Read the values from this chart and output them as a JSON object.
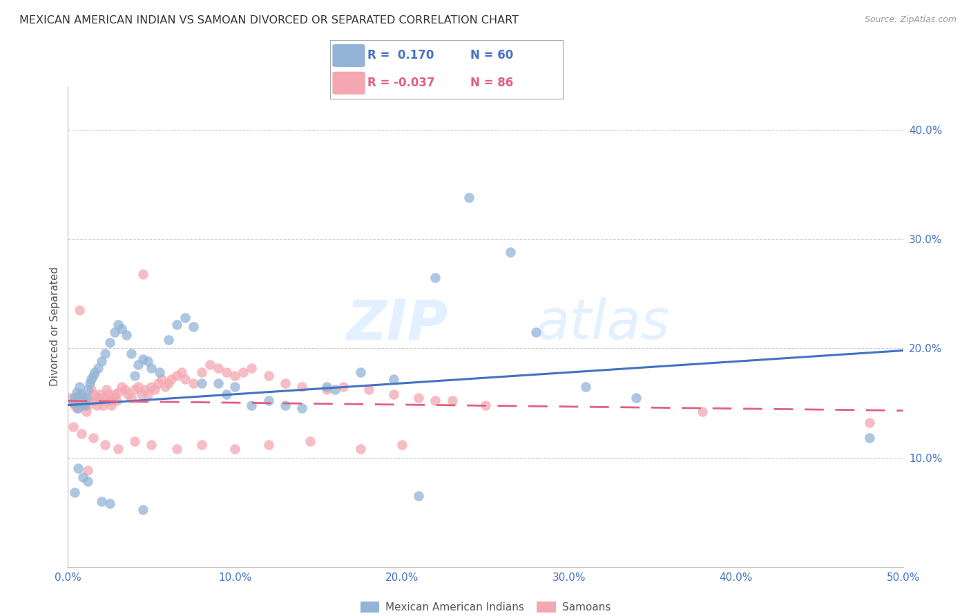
{
  "title": "MEXICAN AMERICAN INDIAN VS SAMOAN DIVORCED OR SEPARATED CORRELATION CHART",
  "source": "Source: ZipAtlas.com",
  "ylabel": "Divorced or Separated",
  "legend_label1": "Mexican American Indians",
  "legend_label2": "Samoans",
  "R1": 0.17,
  "N1": 60,
  "R2": -0.037,
  "N2": 86,
  "xlim": [
    0.0,
    0.5
  ],
  "ylim": [
    0.0,
    0.44
  ],
  "xticks": [
    0.0,
    0.1,
    0.2,
    0.3,
    0.4,
    0.5
  ],
  "yticks": [
    0.1,
    0.2,
    0.3,
    0.4
  ],
  "color1": "#92b4d7",
  "color2": "#f4a7b0",
  "line_color1": "#4472C4",
  "line_color2": "#E06080",
  "watermark_zip": "ZIP",
  "watermark_atlas": "atlas",
  "blue_scatter_x": [
    0.003,
    0.004,
    0.005,
    0.006,
    0.007,
    0.008,
    0.009,
    0.01,
    0.011,
    0.012,
    0.013,
    0.014,
    0.015,
    0.016,
    0.018,
    0.02,
    0.022,
    0.025,
    0.028,
    0.03,
    0.032,
    0.035,
    0.038,
    0.04,
    0.042,
    0.045,
    0.048,
    0.05,
    0.055,
    0.06,
    0.065,
    0.07,
    0.075,
    0.08,
    0.09,
    0.095,
    0.1,
    0.11,
    0.12,
    0.13,
    0.14,
    0.155,
    0.16,
    0.175,
    0.195,
    0.22,
    0.24,
    0.265,
    0.28,
    0.31,
    0.34,
    0.004,
    0.006,
    0.009,
    0.012,
    0.02,
    0.025,
    0.045,
    0.21,
    0.48
  ],
  "blue_scatter_y": [
    0.15,
    0.155,
    0.16,
    0.145,
    0.165,
    0.158,
    0.152,
    0.148,
    0.155,
    0.162,
    0.168,
    0.172,
    0.175,
    0.178,
    0.182,
    0.188,
    0.195,
    0.205,
    0.215,
    0.222,
    0.218,
    0.212,
    0.195,
    0.175,
    0.185,
    0.19,
    0.188,
    0.182,
    0.178,
    0.208,
    0.222,
    0.228,
    0.22,
    0.168,
    0.168,
    0.158,
    0.165,
    0.148,
    0.152,
    0.148,
    0.145,
    0.165,
    0.162,
    0.178,
    0.172,
    0.265,
    0.338,
    0.288,
    0.215,
    0.165,
    0.155,
    0.068,
    0.09,
    0.082,
    0.078,
    0.06,
    0.058,
    0.052,
    0.065,
    0.118
  ],
  "pink_scatter_x": [
    0.002,
    0.003,
    0.004,
    0.005,
    0.006,
    0.007,
    0.008,
    0.009,
    0.01,
    0.011,
    0.012,
    0.013,
    0.014,
    0.015,
    0.016,
    0.017,
    0.018,
    0.019,
    0.02,
    0.021,
    0.022,
    0.023,
    0.024,
    0.025,
    0.026,
    0.027,
    0.028,
    0.029,
    0.03,
    0.032,
    0.034,
    0.036,
    0.038,
    0.04,
    0.042,
    0.044,
    0.046,
    0.048,
    0.05,
    0.052,
    0.054,
    0.056,
    0.058,
    0.06,
    0.062,
    0.065,
    0.068,
    0.07,
    0.075,
    0.08,
    0.085,
    0.09,
    0.095,
    0.1,
    0.105,
    0.11,
    0.12,
    0.13,
    0.14,
    0.155,
    0.165,
    0.18,
    0.195,
    0.21,
    0.23,
    0.25,
    0.003,
    0.008,
    0.015,
    0.022,
    0.03,
    0.04,
    0.05,
    0.065,
    0.08,
    0.1,
    0.12,
    0.145,
    0.175,
    0.2,
    0.007,
    0.012,
    0.045,
    0.22,
    0.38,
    0.48
  ],
  "pink_scatter_y": [
    0.155,
    0.15,
    0.148,
    0.145,
    0.152,
    0.158,
    0.148,
    0.155,
    0.15,
    0.142,
    0.148,
    0.155,
    0.162,
    0.158,
    0.152,
    0.148,
    0.155,
    0.158,
    0.152,
    0.148,
    0.155,
    0.162,
    0.158,
    0.152,
    0.148,
    0.155,
    0.158,
    0.152,
    0.16,
    0.165,
    0.162,
    0.158,
    0.155,
    0.162,
    0.165,
    0.158,
    0.162,
    0.158,
    0.165,
    0.162,
    0.168,
    0.172,
    0.165,
    0.168,
    0.172,
    0.175,
    0.178,
    0.172,
    0.168,
    0.178,
    0.185,
    0.182,
    0.178,
    0.175,
    0.178,
    0.182,
    0.175,
    0.168,
    0.165,
    0.162,
    0.165,
    0.162,
    0.158,
    0.155,
    0.152,
    0.148,
    0.128,
    0.122,
    0.118,
    0.112,
    0.108,
    0.115,
    0.112,
    0.108,
    0.112,
    0.108,
    0.112,
    0.115,
    0.108,
    0.112,
    0.235,
    0.088,
    0.268,
    0.152,
    0.142,
    0.132
  ]
}
